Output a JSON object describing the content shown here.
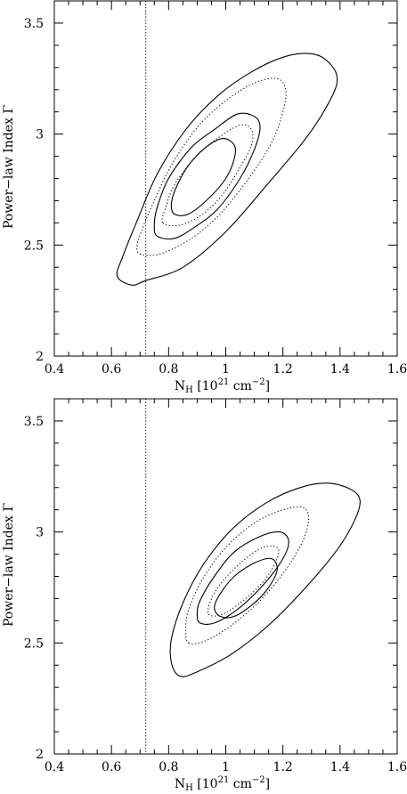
{
  "chart_data": [
    {
      "type": "contour",
      "panel": "top",
      "xlabel_main": "N",
      "xlabel_sub": "H",
      "xlabel_mid": " [10",
      "xlabel_sup1": "21",
      "xlabel_mid2": " cm",
      "xlabel_sup2": "−2",
      "xlabel_end": "]",
      "ylabel": "Power−law Index Γ",
      "xlim": [
        0.4,
        1.6
      ],
      "ylim": [
        2.0,
        3.6
      ],
      "xticks": [
        0.4,
        0.6,
        0.8,
        1.0,
        1.2,
        1.4,
        1.6
      ],
      "xtick_labels": [
        "0.4",
        "0.6",
        "0.8",
        "1",
        "1.2",
        "1.4",
        "1.6"
      ],
      "yticks": [
        2.0,
        2.5,
        3.0,
        3.5
      ],
      "ytick_labels": [
        "2",
        "2.5",
        "3",
        "3.5"
      ],
      "vline_x": 0.72,
      "contours": [
        {
          "style": "solid",
          "points": [
            [
              0.67,
              2.32
            ],
            [
              0.72,
              2.34
            ],
            [
              0.85,
              2.4
            ],
            [
              1.0,
              2.56
            ],
            [
              1.15,
              2.78
            ],
            [
              1.28,
              2.98
            ],
            [
              1.36,
              3.14
            ],
            [
              1.39,
              3.24
            ],
            [
              1.37,
              3.31
            ],
            [
              1.31,
              3.36
            ],
            [
              1.21,
              3.35
            ],
            [
              1.09,
              3.28
            ],
            [
              0.97,
              3.17
            ],
            [
              0.86,
              3.02
            ],
            [
              0.76,
              2.82
            ],
            [
              0.69,
              2.61
            ],
            [
              0.64,
              2.45
            ],
            [
              0.62,
              2.36
            ]
          ]
        },
        {
          "style": "dotted",
          "points": [
            [
              0.7,
              2.46
            ],
            [
              0.77,
              2.46
            ],
            [
              0.88,
              2.53
            ],
            [
              0.98,
              2.64
            ],
            [
              1.08,
              2.8
            ],
            [
              1.16,
              2.96
            ],
            [
              1.2,
              3.1
            ],
            [
              1.21,
              3.2
            ],
            [
              1.18,
              3.25
            ],
            [
              1.1,
              3.23
            ],
            [
              1.0,
              3.15
            ],
            [
              0.9,
              3.03
            ],
            [
              0.81,
              2.86
            ],
            [
              0.75,
              2.7
            ],
            [
              0.71,
              2.58
            ],
            [
              0.69,
              2.5
            ]
          ]
        },
        {
          "style": "solid",
          "points": [
            [
              0.76,
              2.54
            ],
            [
              0.82,
              2.53
            ],
            [
              0.89,
              2.58
            ],
            [
              0.97,
              2.66
            ],
            [
              1.05,
              2.8
            ],
            [
              1.1,
              2.93
            ],
            [
              1.12,
              3.03
            ],
            [
              1.1,
              3.08
            ],
            [
              1.04,
              3.09
            ],
            [
              0.96,
              3.02
            ],
            [
              0.88,
              2.94
            ],
            [
              0.8,
              2.8
            ],
            [
              0.76,
              2.67
            ],
            [
              0.75,
              2.59
            ]
          ]
        },
        {
          "style": "dotted",
          "points": [
            [
              0.78,
              2.6
            ],
            [
              0.84,
              2.59
            ],
            [
              0.92,
              2.64
            ],
            [
              0.99,
              2.73
            ],
            [
              1.05,
              2.85
            ],
            [
              1.09,
              2.95
            ],
            [
              1.09,
              3.02
            ],
            [
              1.05,
              3.04
            ],
            [
              0.97,
              2.98
            ],
            [
              0.89,
              2.89
            ],
            [
              0.82,
              2.77
            ],
            [
              0.79,
              2.67
            ]
          ]
        },
        {
          "style": "solid",
          "points": [
            [
              0.82,
              2.64
            ],
            [
              0.87,
              2.64
            ],
            [
              0.94,
              2.71
            ],
            [
              1.0,
              2.8
            ],
            [
              1.03,
              2.89
            ],
            [
              1.03,
              2.95
            ],
            [
              0.99,
              2.98
            ],
            [
              0.93,
              2.94
            ],
            [
              0.87,
              2.86
            ],
            [
              0.83,
              2.77
            ],
            [
              0.81,
              2.69
            ]
          ]
        }
      ]
    },
    {
      "type": "contour",
      "panel": "bottom",
      "xlabel_main": "N",
      "xlabel_sub": "H",
      "xlabel_mid": " [10",
      "xlabel_sup1": "21",
      "xlabel_mid2": " cm",
      "xlabel_sup2": "−2",
      "xlabel_end": "]",
      "ylabel": "Power−law Index Γ",
      "xlim": [
        0.4,
        1.6
      ],
      "ylim": [
        2.0,
        3.6
      ],
      "xticks": [
        0.4,
        0.6,
        0.8,
        1.0,
        1.2,
        1.4,
        1.6
      ],
      "xtick_labels": [
        "0.4",
        "0.6",
        "0.8",
        "1",
        "1.2",
        "1.4",
        "1.6"
      ],
      "yticks": [
        2.0,
        2.5,
        3.0,
        3.5
      ],
      "ytick_labels": [
        "2",
        "2.5",
        "3",
        "3.5"
      ],
      "vline_x": 0.72,
      "contours": [
        {
          "style": "solid",
          "points": [
            [
              0.84,
              2.35
            ],
            [
              0.9,
              2.37
            ],
            [
              1.02,
              2.45
            ],
            [
              1.15,
              2.58
            ],
            [
              1.28,
              2.75
            ],
            [
              1.39,
              2.92
            ],
            [
              1.45,
              3.05
            ],
            [
              1.47,
              3.14
            ],
            [
              1.44,
              3.19
            ],
            [
              1.36,
              3.22
            ],
            [
              1.26,
              3.2
            ],
            [
              1.14,
              3.13
            ],
            [
              1.02,
              3.01
            ],
            [
              0.92,
              2.85
            ],
            [
              0.85,
              2.68
            ],
            [
              0.81,
              2.52
            ],
            [
              0.81,
              2.41
            ]
          ]
        },
        {
          "style": "dotted",
          "points": [
            [
              0.87,
              2.5
            ],
            [
              0.93,
              2.51
            ],
            [
              1.02,
              2.58
            ],
            [
              1.12,
              2.69
            ],
            [
              1.21,
              2.83
            ],
            [
              1.27,
              2.96
            ],
            [
              1.29,
              3.06
            ],
            [
              1.27,
              3.11
            ],
            [
              1.2,
              3.1
            ],
            [
              1.1,
              3.04
            ],
            [
              1.0,
              2.93
            ],
            [
              0.92,
              2.79
            ],
            [
              0.87,
              2.65
            ],
            [
              0.86,
              2.56
            ]
          ]
        },
        {
          "style": "solid",
          "points": [
            [
              0.91,
              2.59
            ],
            [
              0.96,
              2.59
            ],
            [
              1.04,
              2.65
            ],
            [
              1.13,
              2.76
            ],
            [
              1.2,
              2.88
            ],
            [
              1.22,
              2.96
            ],
            [
              1.19,
              3.0
            ],
            [
              1.12,
              2.98
            ],
            [
              1.03,
              2.91
            ],
            [
              0.96,
              2.8
            ],
            [
              0.91,
              2.69
            ],
            [
              0.9,
              2.63
            ]
          ]
        },
        {
          "style": "dotted",
          "points": [
            [
              0.94,
              2.63
            ],
            [
              0.99,
              2.63
            ],
            [
              1.07,
              2.7
            ],
            [
              1.14,
              2.79
            ],
            [
              1.18,
              2.88
            ],
            [
              1.18,
              2.93
            ],
            [
              1.13,
              2.93
            ],
            [
              1.06,
              2.87
            ],
            [
              0.99,
              2.78
            ],
            [
              0.95,
              2.7
            ]
          ]
        },
        {
          "style": "solid",
          "points": [
            [
              0.98,
              2.62
            ],
            [
              1.03,
              2.62
            ],
            [
              1.1,
              2.68
            ],
            [
              1.15,
              2.75
            ],
            [
              1.18,
              2.83
            ],
            [
              1.16,
              2.88
            ],
            [
              1.1,
              2.86
            ],
            [
              1.03,
              2.8
            ],
            [
              0.98,
              2.72
            ],
            [
              0.96,
              2.66
            ]
          ]
        }
      ]
    }
  ]
}
